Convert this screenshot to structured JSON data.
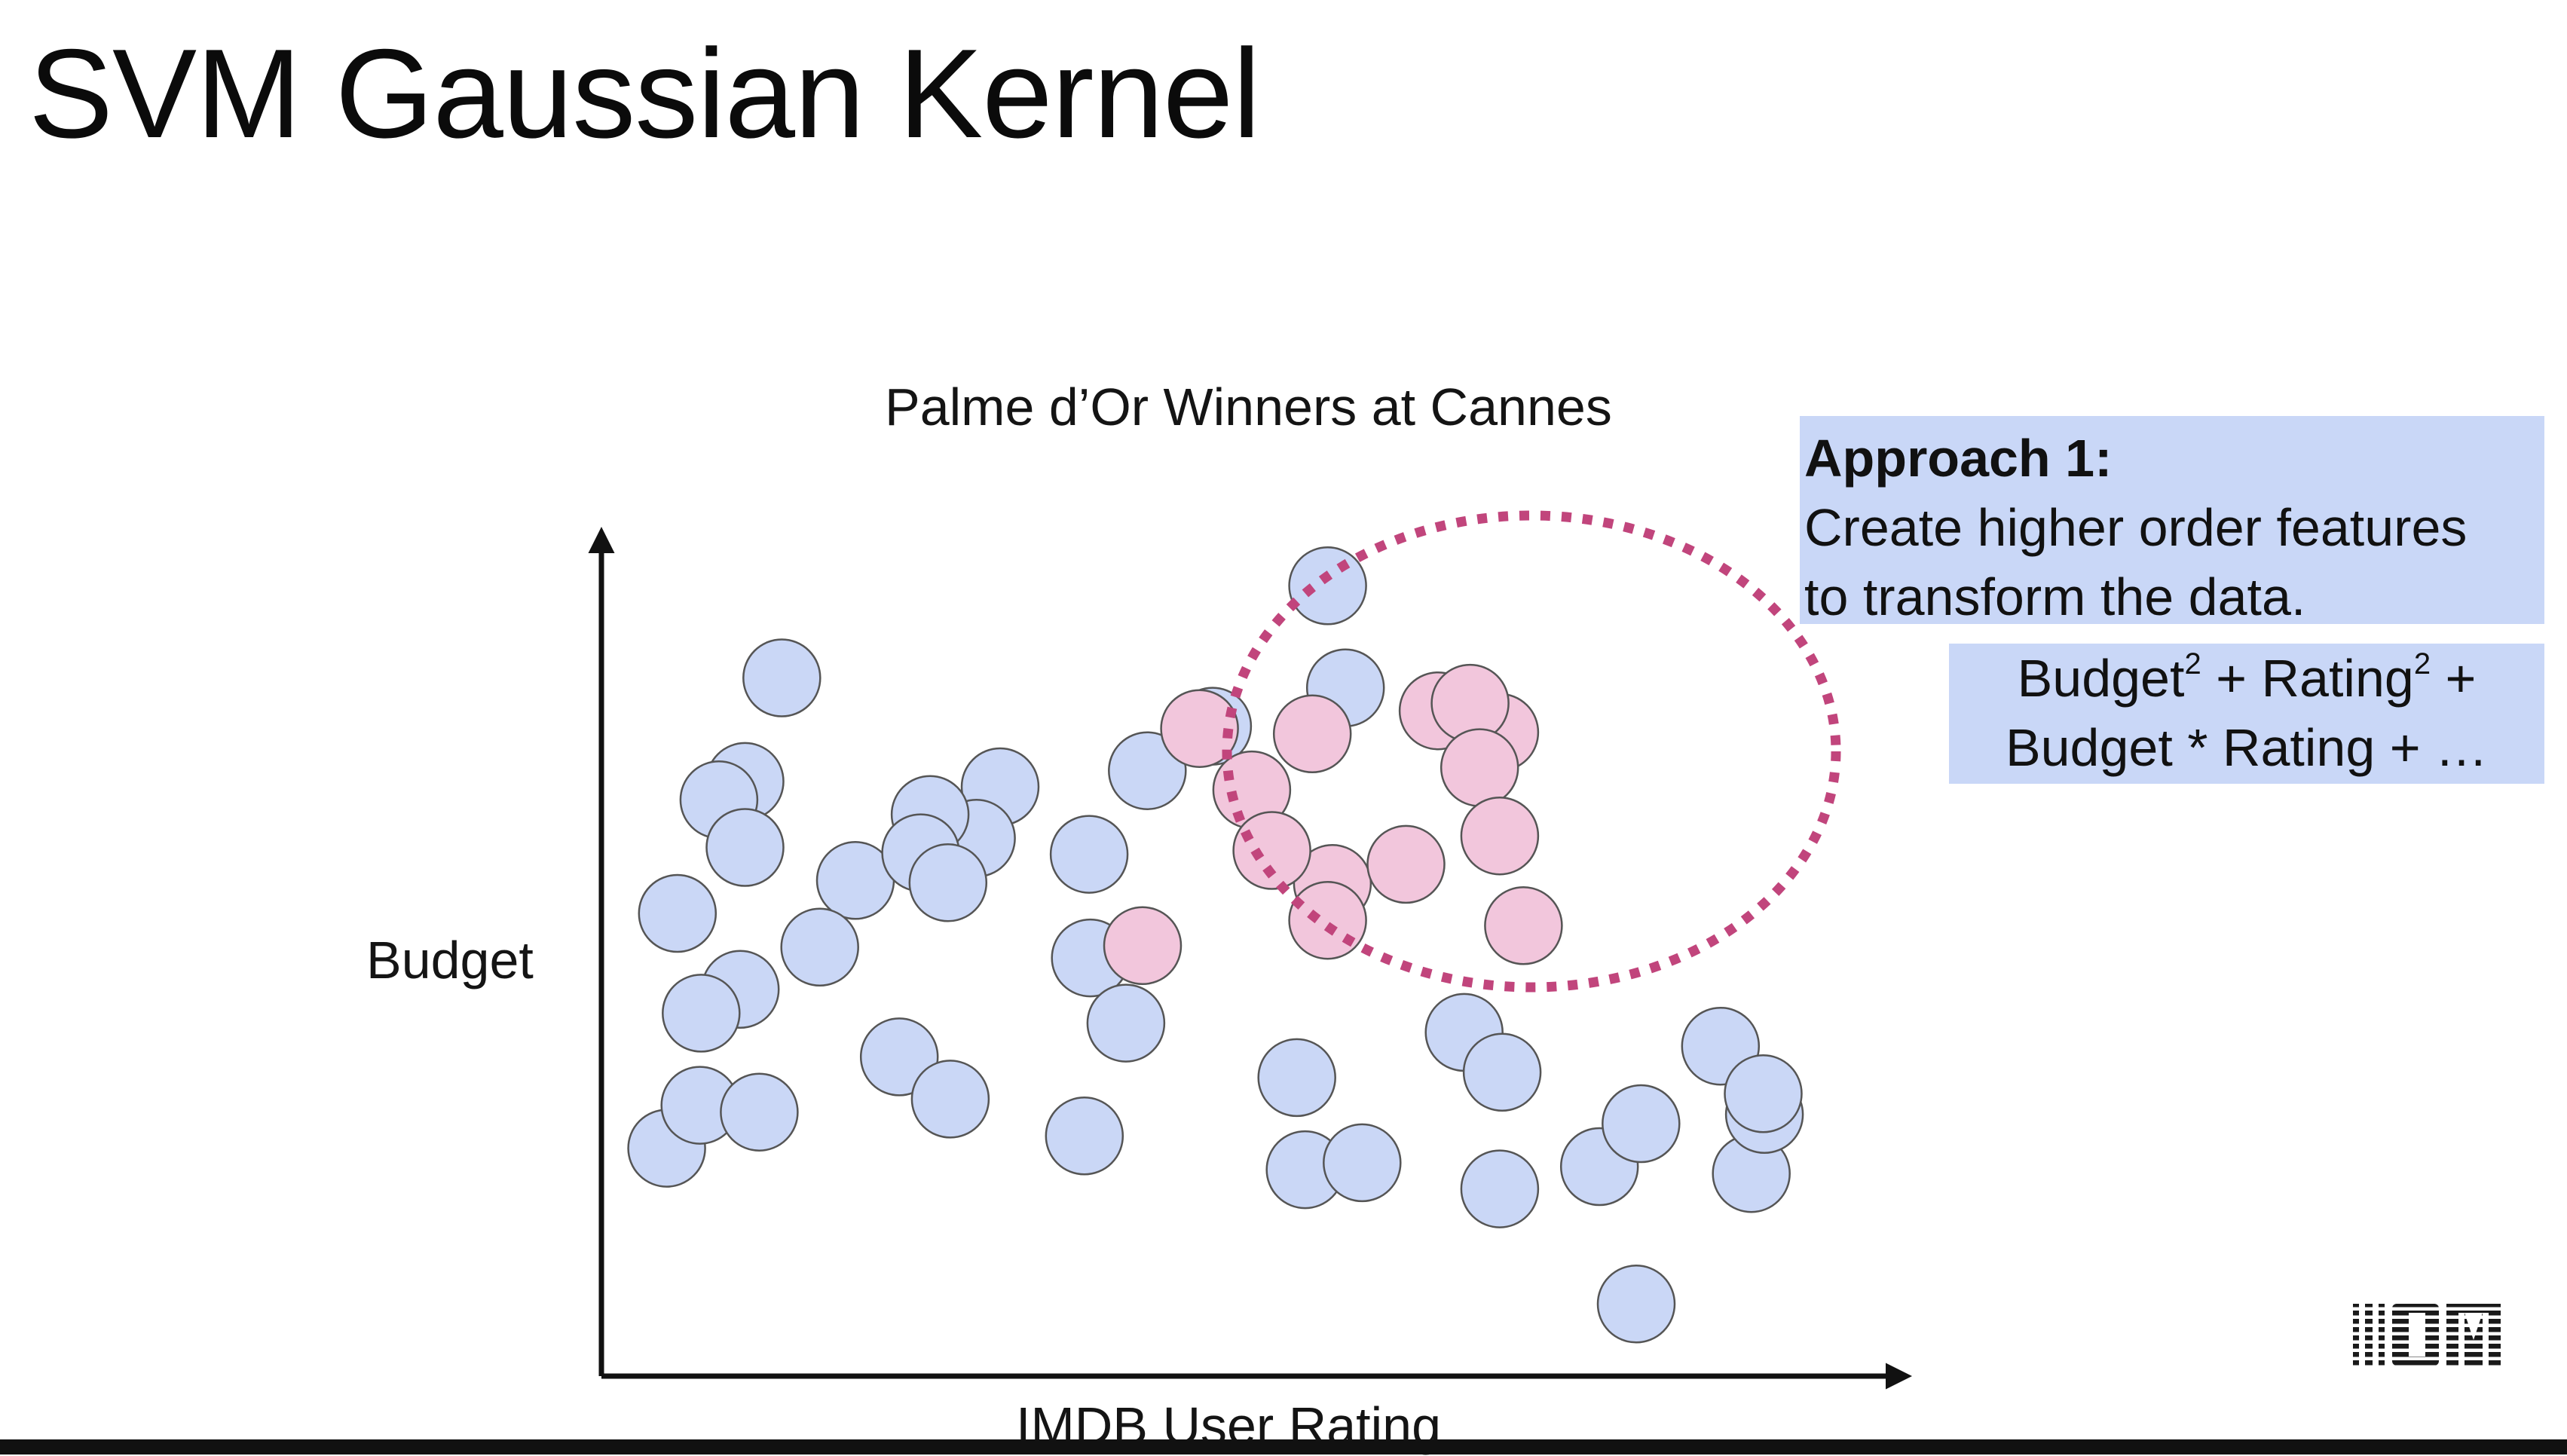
{
  "slide": {
    "title": "SVM Gaussian Kernel",
    "approach": {
      "heading": "Approach 1:",
      "line1": "Create higher order features",
      "line2": "to transform the data."
    },
    "formula": {
      "budget": "Budget",
      "squared": "2",
      "plus_rating": " + Rating",
      "trailing_plus": " +",
      "line2": "Budget * Rating + …"
    },
    "logo": "IBM"
  },
  "chart_data": {
    "type": "scatter",
    "title": "Palme d’Or Winners at Cannes",
    "xlabel": "IMDB User Rating",
    "ylabel": "Budget",
    "grid": false,
    "legend": "none",
    "annotation": "dotted ellipse enclosing the pink class",
    "series": [
      {
        "color": "#cad7f6",
        "points": [
          [
            0.55,
            2.97
          ],
          [
            1.52,
            9.1
          ],
          [
            1.21,
            7.75
          ],
          [
            0.99,
            7.51
          ],
          [
            3.36,
            7.68
          ],
          [
            5.15,
            8.47
          ],
          [
            6.12,
            10.3
          ],
          [
            6.27,
            8.97
          ],
          [
            8.41,
            2.73
          ],
          [
            8.72,
            0.94
          ],
          [
            9.69,
            2.64
          ],
          [
            9.8,
            3.41
          ],
          [
            5.93,
            2.69
          ],
          [
            3.16,
            7.01
          ],
          [
            2.77,
            7.32
          ],
          [
            1.17,
            5.04
          ],
          [
            1.21,
            6.89
          ],
          [
            2.14,
            6.46
          ],
          [
            2.69,
            6.82
          ],
          [
            4.6,
            7.89
          ],
          [
            4.11,
            6.8
          ],
          [
            0.64,
            6.03
          ],
          [
            1.84,
            5.59
          ],
          [
            2.92,
            6.43
          ],
          [
            4.12,
            5.45
          ],
          [
            4.42,
            4.6
          ],
          [
            5.86,
            3.89
          ],
          [
            7.27,
            4.48
          ],
          [
            8.76,
            3.29
          ],
          [
            9.43,
            4.3
          ],
          [
            9.79,
            3.68
          ],
          [
            0.84,
            4.73
          ],
          [
            0.83,
            3.53
          ],
          [
            1.33,
            3.44
          ],
          [
            4.07,
            3.13
          ],
          [
            6.41,
            2.78
          ],
          [
            2.51,
            4.16
          ],
          [
            7.59,
            3.96
          ],
          [
            7.57,
            2.44
          ],
          [
            2.94,
            3.61
          ]
        ]
      },
      {
        "color": "#f2c6dc",
        "points": [
          [
            5.99,
            8.37
          ],
          [
            7.05,
            8.67
          ],
          [
            7.57,
            8.39
          ],
          [
            7.32,
            8.77
          ],
          [
            5.04,
            8.44
          ],
          [
            5.48,
            7.64
          ],
          [
            6.16,
            6.42
          ],
          [
            6.78,
            6.67
          ],
          [
            7.77,
            5.87
          ],
          [
            6.12,
            5.94
          ],
          [
            5.65,
            6.85
          ],
          [
            4.56,
            5.61
          ],
          [
            7.4,
            7.93
          ],
          [
            7.57,
            7.04
          ]
        ]
      }
    ]
  }
}
